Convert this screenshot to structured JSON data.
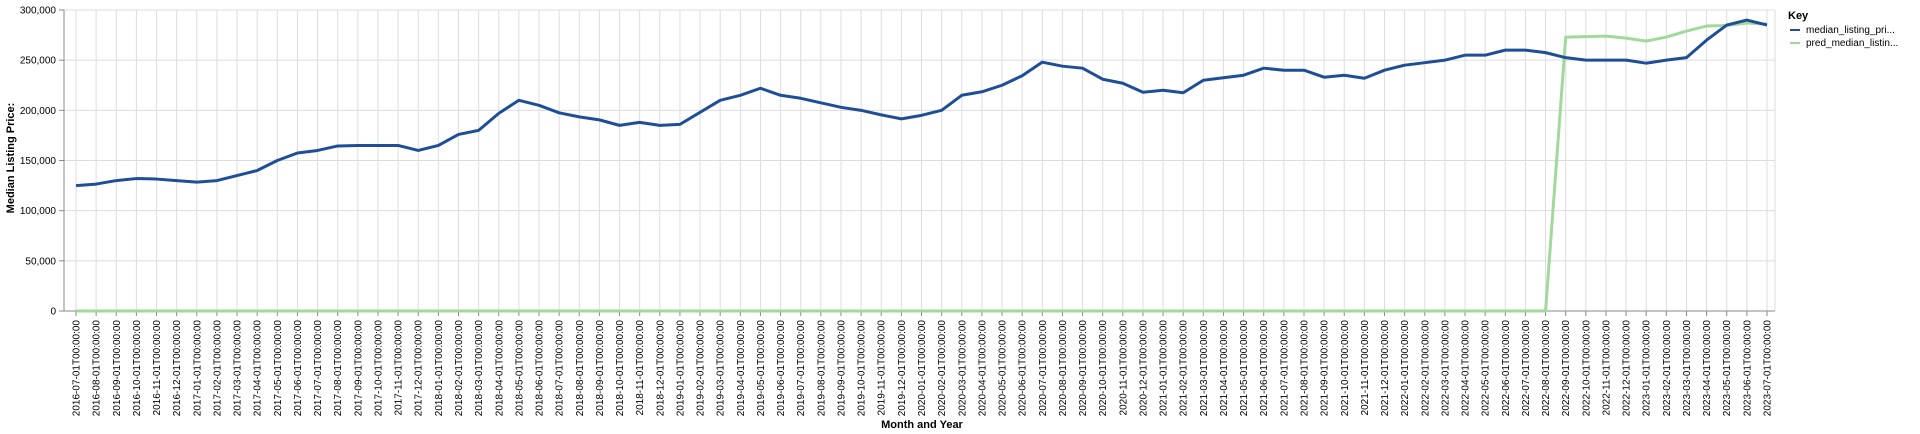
{
  "chart_data": {
    "type": "line",
    "title": "",
    "xlabel": "Month and Year",
    "ylabel": "Median Listing Price:",
    "ylim": [
      0,
      300000
    ],
    "yticks": [
      "0",
      "50,000",
      "100,000",
      "150,000",
      "200,000",
      "250,000",
      "300,000"
    ],
    "grid": true,
    "legend": {
      "title": "Key",
      "placement": "top-right"
    },
    "x": [
      "2016-07-01T00:00:00",
      "2016-08-01T00:00:00",
      "2016-09-01T00:00:00",
      "2016-10-01T00:00:00",
      "2016-11-01T00:00:00",
      "2016-12-01T00:00:00",
      "2017-01-01T00:00:00",
      "2017-02-01T00:00:00",
      "2017-03-01T00:00:00",
      "2017-04-01T00:00:00",
      "2017-05-01T00:00:00",
      "2017-06-01T00:00:00",
      "2017-07-01T00:00:00",
      "2017-08-01T00:00:00",
      "2017-09-01T00:00:00",
      "2017-10-01T00:00:00",
      "2017-11-01T00:00:00",
      "2017-12-01T00:00:00",
      "2018-01-01T00:00:00",
      "2018-02-01T00:00:00",
      "2018-03-01T00:00:00",
      "2018-04-01T00:00:00",
      "2018-05-01T00:00:00",
      "2018-06-01T00:00:00",
      "2018-07-01T00:00:00",
      "2018-08-01T00:00:00",
      "2018-09-01T00:00:00",
      "2018-10-01T00:00:00",
      "2018-11-01T00:00:00",
      "2018-12-01T00:00:00",
      "2019-01-01T00:00:00",
      "2019-02-01T00:00:00",
      "2019-03-01T00:00:00",
      "2019-04-01T00:00:00",
      "2019-05-01T00:00:00",
      "2019-06-01T00:00:00",
      "2019-07-01T00:00:00",
      "2019-08-01T00:00:00",
      "2019-09-01T00:00:00",
      "2019-10-01T00:00:00",
      "2019-11-01T00:00:00",
      "2019-12-01T00:00:00",
      "2020-01-01T00:00:00",
      "2020-02-01T00:00:00",
      "2020-03-01T00:00:00",
      "2020-04-01T00:00:00",
      "2020-05-01T00:00:00",
      "2020-06-01T00:00:00",
      "2020-07-01T00:00:00",
      "2020-08-01T00:00:00",
      "2020-09-01T00:00:00",
      "2020-10-01T00:00:00",
      "2020-11-01T00:00:00",
      "2020-12-01T00:00:00",
      "2021-01-01T00:00:00",
      "2021-02-01T00:00:00",
      "2021-03-01T00:00:00",
      "2021-04-01T00:00:00",
      "2021-05-01T00:00:00",
      "2021-06-01T00:00:00",
      "2021-07-01T00:00:00",
      "2021-08-01T00:00:00",
      "2021-09-01T00:00:00",
      "2021-10-01T00:00:00",
      "2021-11-01T00:00:00",
      "2021-12-01T00:00:00",
      "2022-01-01T00:00:00",
      "2022-02-01T00:00:00",
      "2022-03-01T00:00:00",
      "2022-04-01T00:00:00",
      "2022-05-01T00:00:00",
      "2022-06-01T00:00:00",
      "2022-07-01T00:00:00",
      "2022-08-01T00:00:00",
      "2022-09-01T00:00:00",
      "2022-10-01T00:00:00",
      "2022-11-01T00:00:00",
      "2022-12-01T00:00:00",
      "2023-01-01T00:00:00",
      "2023-02-01T00:00:00",
      "2023-03-01T00:00:00",
      "2023-04-01T00:00:00",
      "2023-05-01T00:00:00",
      "2023-06-01T00:00:00",
      "2023-07-01T00:00:00"
    ],
    "series": [
      {
        "name": "median_listing_pri...",
        "color": "#1f4e99",
        "values": [
          125000,
          126500,
          130000,
          132000,
          131500,
          130000,
          128500,
          130000,
          135000,
          140000,
          150000,
          157500,
          160000,
          164500,
          165000,
          165000,
          165000,
          160000,
          165000,
          176000,
          180000,
          197000,
          210000,
          205000,
          197500,
          193500,
          190500,
          185000,
          188000,
          185000,
          186000,
          198000,
          210000,
          215000,
          222000,
          215000,
          212000,
          207500,
          203000,
          200000,
          195500,
          191500,
          195000,
          200000,
          215000,
          218500,
          225000,
          234500,
          248000,
          244000,
          242000,
          231000,
          227000,
          218000,
          220000,
          217500,
          230000,
          232500,
          235000,
          242000,
          240000,
          240000,
          233000,
          235000,
          232000,
          240000,
          245000,
          247500,
          250000,
          255000,
          255000,
          260000,
          260000,
          257500,
          252500,
          250000,
          250000,
          250000,
          247000,
          250000,
          252500,
          270000,
          285000,
          290000,
          285000
        ]
      },
      {
        "name": "pred_median_listin...",
        "color": "#a1d99b",
        "values": [
          0,
          0,
          0,
          0,
          0,
          0,
          0,
          0,
          0,
          0,
          0,
          0,
          0,
          0,
          0,
          0,
          0,
          0,
          0,
          0,
          0,
          0,
          0,
          0,
          0,
          0,
          0,
          0,
          0,
          0,
          0,
          0,
          0,
          0,
          0,
          0,
          0,
          0,
          0,
          0,
          0,
          0,
          0,
          0,
          0,
          0,
          0,
          0,
          0,
          0,
          0,
          0,
          0,
          0,
          0,
          0,
          0,
          0,
          0,
          0,
          0,
          0,
          0,
          0,
          0,
          0,
          0,
          0,
          0,
          0,
          0,
          0,
          0,
          0,
          273000,
          273500,
          274000,
          272000,
          269000,
          273000,
          279000,
          284000,
          284500,
          287000,
          286000
        ]
      }
    ]
  }
}
